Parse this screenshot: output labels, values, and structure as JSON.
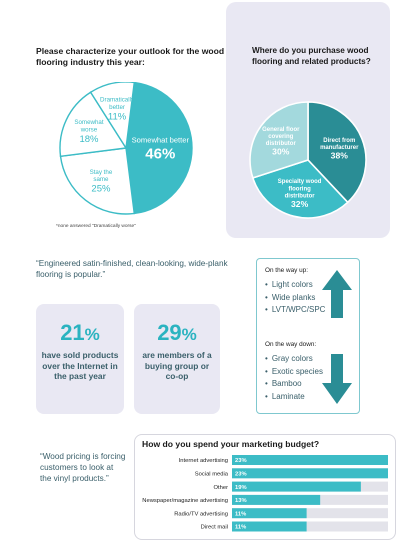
{
  "chart_data": [
    {
      "type": "pie",
      "title": "Please characterize your outlook for the wood flooring industry this year:",
      "slices": [
        {
          "label": "Somewhat better",
          "value": 46,
          "display": "46%"
        },
        {
          "label": "Stay the same",
          "value": 25,
          "display": "25%"
        },
        {
          "label": "Somewhat worse",
          "value": 18,
          "display": "18%"
        },
        {
          "label": "Dramatically better",
          "value": 11,
          "display": "11%"
        }
      ],
      "footnote": "*none answered \"Dramatically worse\"",
      "colors": {
        "highlight": "#3cbcc6",
        "other": "#ffffff",
        "stroke": "#3cbcc6",
        "highlight_text": "#ffffff",
        "other_text": "#3cbcc6"
      }
    },
    {
      "type": "pie",
      "title": "Where do you purchase wood flooring and related products?",
      "slices": [
        {
          "label": "Direct from manufacturer",
          "value": 38,
          "display": "38%",
          "color": "#2a8d95"
        },
        {
          "label": "Specialty wood flooring distributor",
          "value": 32,
          "display": "32%",
          "color": "#3cbcc6"
        },
        {
          "label": "General floor covering distributor",
          "value": 30,
          "display": "30%",
          "color": "#a3d9dd"
        }
      ]
    },
    {
      "type": "bar",
      "title": "How do you spend your marketing budget?",
      "categories": [
        "Internet advertising",
        "Social media",
        "Other",
        "Newspaper/magazine advertising",
        "Radio/TV advertising",
        "Direct mail"
      ],
      "values": [
        23,
        23,
        19,
        13,
        11,
        11
      ],
      "labels": [
        "23%",
        "23%",
        "19%",
        "13%",
        "11%",
        "11%"
      ],
      "xlim": [
        0,
        23
      ],
      "bar_color": "#3cbcc6",
      "track_color": "#e3e3ea"
    }
  ],
  "quotes": {
    "q1": "“Engineered satin-finished, clean-looking, wide-plank flooring is popular.”",
    "q2": "“Wood pricing is forcing customers to look at the vinyl products.”"
  },
  "stats": [
    {
      "number": "21",
      "unit": "%",
      "text": "have sold products over the Internet in the past year"
    },
    {
      "number": "29",
      "unit": "%",
      "text": "are members of a buying group or co-op"
    }
  ],
  "trends": {
    "up_heading": "On the way up:",
    "up_items": [
      "Light colors",
      "Wide planks",
      "LVT/WPC/SPC"
    ],
    "down_heading": "On the way down:",
    "down_items": [
      "Gray colors",
      "Exotic species",
      "Bamboo",
      "Laminate"
    ],
    "arrow_color": "#2a8d95",
    "up_icon": "arrow-up-icon",
    "down_icon": "arrow-down-icon"
  }
}
